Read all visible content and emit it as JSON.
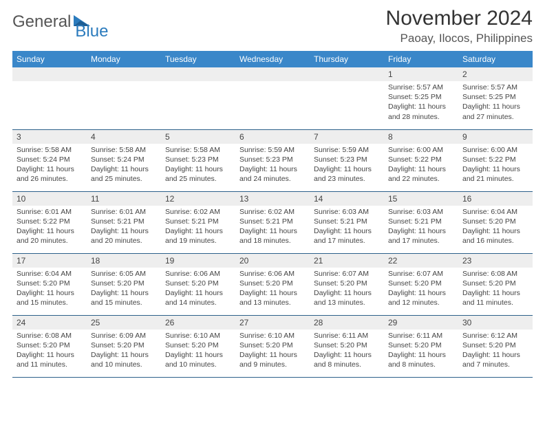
{
  "logo": {
    "part1": "General",
    "part2": "Blue"
  },
  "title": "November 2024",
  "location": "Paoay, Ilocos, Philippines",
  "colors": {
    "header_bg": "#3a87c9",
    "header_text": "#ffffff",
    "daynum_bg": "#eeeeee",
    "border": "#2b5f8a",
    "logo_blue": "#2b7bbd"
  },
  "dayNames": [
    "Sunday",
    "Monday",
    "Tuesday",
    "Wednesday",
    "Thursday",
    "Friday",
    "Saturday"
  ],
  "weeks": [
    [
      null,
      null,
      null,
      null,
      null,
      {
        "n": "1",
        "sr": "5:57 AM",
        "ss": "5:25 PM",
        "dl": "11 hours and 28 minutes."
      },
      {
        "n": "2",
        "sr": "5:57 AM",
        "ss": "5:25 PM",
        "dl": "11 hours and 27 minutes."
      }
    ],
    [
      {
        "n": "3",
        "sr": "5:58 AM",
        "ss": "5:24 PM",
        "dl": "11 hours and 26 minutes."
      },
      {
        "n": "4",
        "sr": "5:58 AM",
        "ss": "5:24 PM",
        "dl": "11 hours and 25 minutes."
      },
      {
        "n": "5",
        "sr": "5:58 AM",
        "ss": "5:23 PM",
        "dl": "11 hours and 25 minutes."
      },
      {
        "n": "6",
        "sr": "5:59 AM",
        "ss": "5:23 PM",
        "dl": "11 hours and 24 minutes."
      },
      {
        "n": "7",
        "sr": "5:59 AM",
        "ss": "5:23 PM",
        "dl": "11 hours and 23 minutes."
      },
      {
        "n": "8",
        "sr": "6:00 AM",
        "ss": "5:22 PM",
        "dl": "11 hours and 22 minutes."
      },
      {
        "n": "9",
        "sr": "6:00 AM",
        "ss": "5:22 PM",
        "dl": "11 hours and 21 minutes."
      }
    ],
    [
      {
        "n": "10",
        "sr": "6:01 AM",
        "ss": "5:22 PM",
        "dl": "11 hours and 20 minutes."
      },
      {
        "n": "11",
        "sr": "6:01 AM",
        "ss": "5:21 PM",
        "dl": "11 hours and 20 minutes."
      },
      {
        "n": "12",
        "sr": "6:02 AM",
        "ss": "5:21 PM",
        "dl": "11 hours and 19 minutes."
      },
      {
        "n": "13",
        "sr": "6:02 AM",
        "ss": "5:21 PM",
        "dl": "11 hours and 18 minutes."
      },
      {
        "n": "14",
        "sr": "6:03 AM",
        "ss": "5:21 PM",
        "dl": "11 hours and 17 minutes."
      },
      {
        "n": "15",
        "sr": "6:03 AM",
        "ss": "5:21 PM",
        "dl": "11 hours and 17 minutes."
      },
      {
        "n": "16",
        "sr": "6:04 AM",
        "ss": "5:20 PM",
        "dl": "11 hours and 16 minutes."
      }
    ],
    [
      {
        "n": "17",
        "sr": "6:04 AM",
        "ss": "5:20 PM",
        "dl": "11 hours and 15 minutes."
      },
      {
        "n": "18",
        "sr": "6:05 AM",
        "ss": "5:20 PM",
        "dl": "11 hours and 15 minutes."
      },
      {
        "n": "19",
        "sr": "6:06 AM",
        "ss": "5:20 PM",
        "dl": "11 hours and 14 minutes."
      },
      {
        "n": "20",
        "sr": "6:06 AM",
        "ss": "5:20 PM",
        "dl": "11 hours and 13 minutes."
      },
      {
        "n": "21",
        "sr": "6:07 AM",
        "ss": "5:20 PM",
        "dl": "11 hours and 13 minutes."
      },
      {
        "n": "22",
        "sr": "6:07 AM",
        "ss": "5:20 PM",
        "dl": "11 hours and 12 minutes."
      },
      {
        "n": "23",
        "sr": "6:08 AM",
        "ss": "5:20 PM",
        "dl": "11 hours and 11 minutes."
      }
    ],
    [
      {
        "n": "24",
        "sr": "6:08 AM",
        "ss": "5:20 PM",
        "dl": "11 hours and 11 minutes."
      },
      {
        "n": "25",
        "sr": "6:09 AM",
        "ss": "5:20 PM",
        "dl": "11 hours and 10 minutes."
      },
      {
        "n": "26",
        "sr": "6:10 AM",
        "ss": "5:20 PM",
        "dl": "11 hours and 10 minutes."
      },
      {
        "n": "27",
        "sr": "6:10 AM",
        "ss": "5:20 PM",
        "dl": "11 hours and 9 minutes."
      },
      {
        "n": "28",
        "sr": "6:11 AM",
        "ss": "5:20 PM",
        "dl": "11 hours and 8 minutes."
      },
      {
        "n": "29",
        "sr": "6:11 AM",
        "ss": "5:20 PM",
        "dl": "11 hours and 8 minutes."
      },
      {
        "n": "30",
        "sr": "6:12 AM",
        "ss": "5:20 PM",
        "dl": "11 hours and 7 minutes."
      }
    ]
  ],
  "labels": {
    "sunrise": "Sunrise:",
    "sunset": "Sunset:",
    "daylight": "Daylight:"
  }
}
